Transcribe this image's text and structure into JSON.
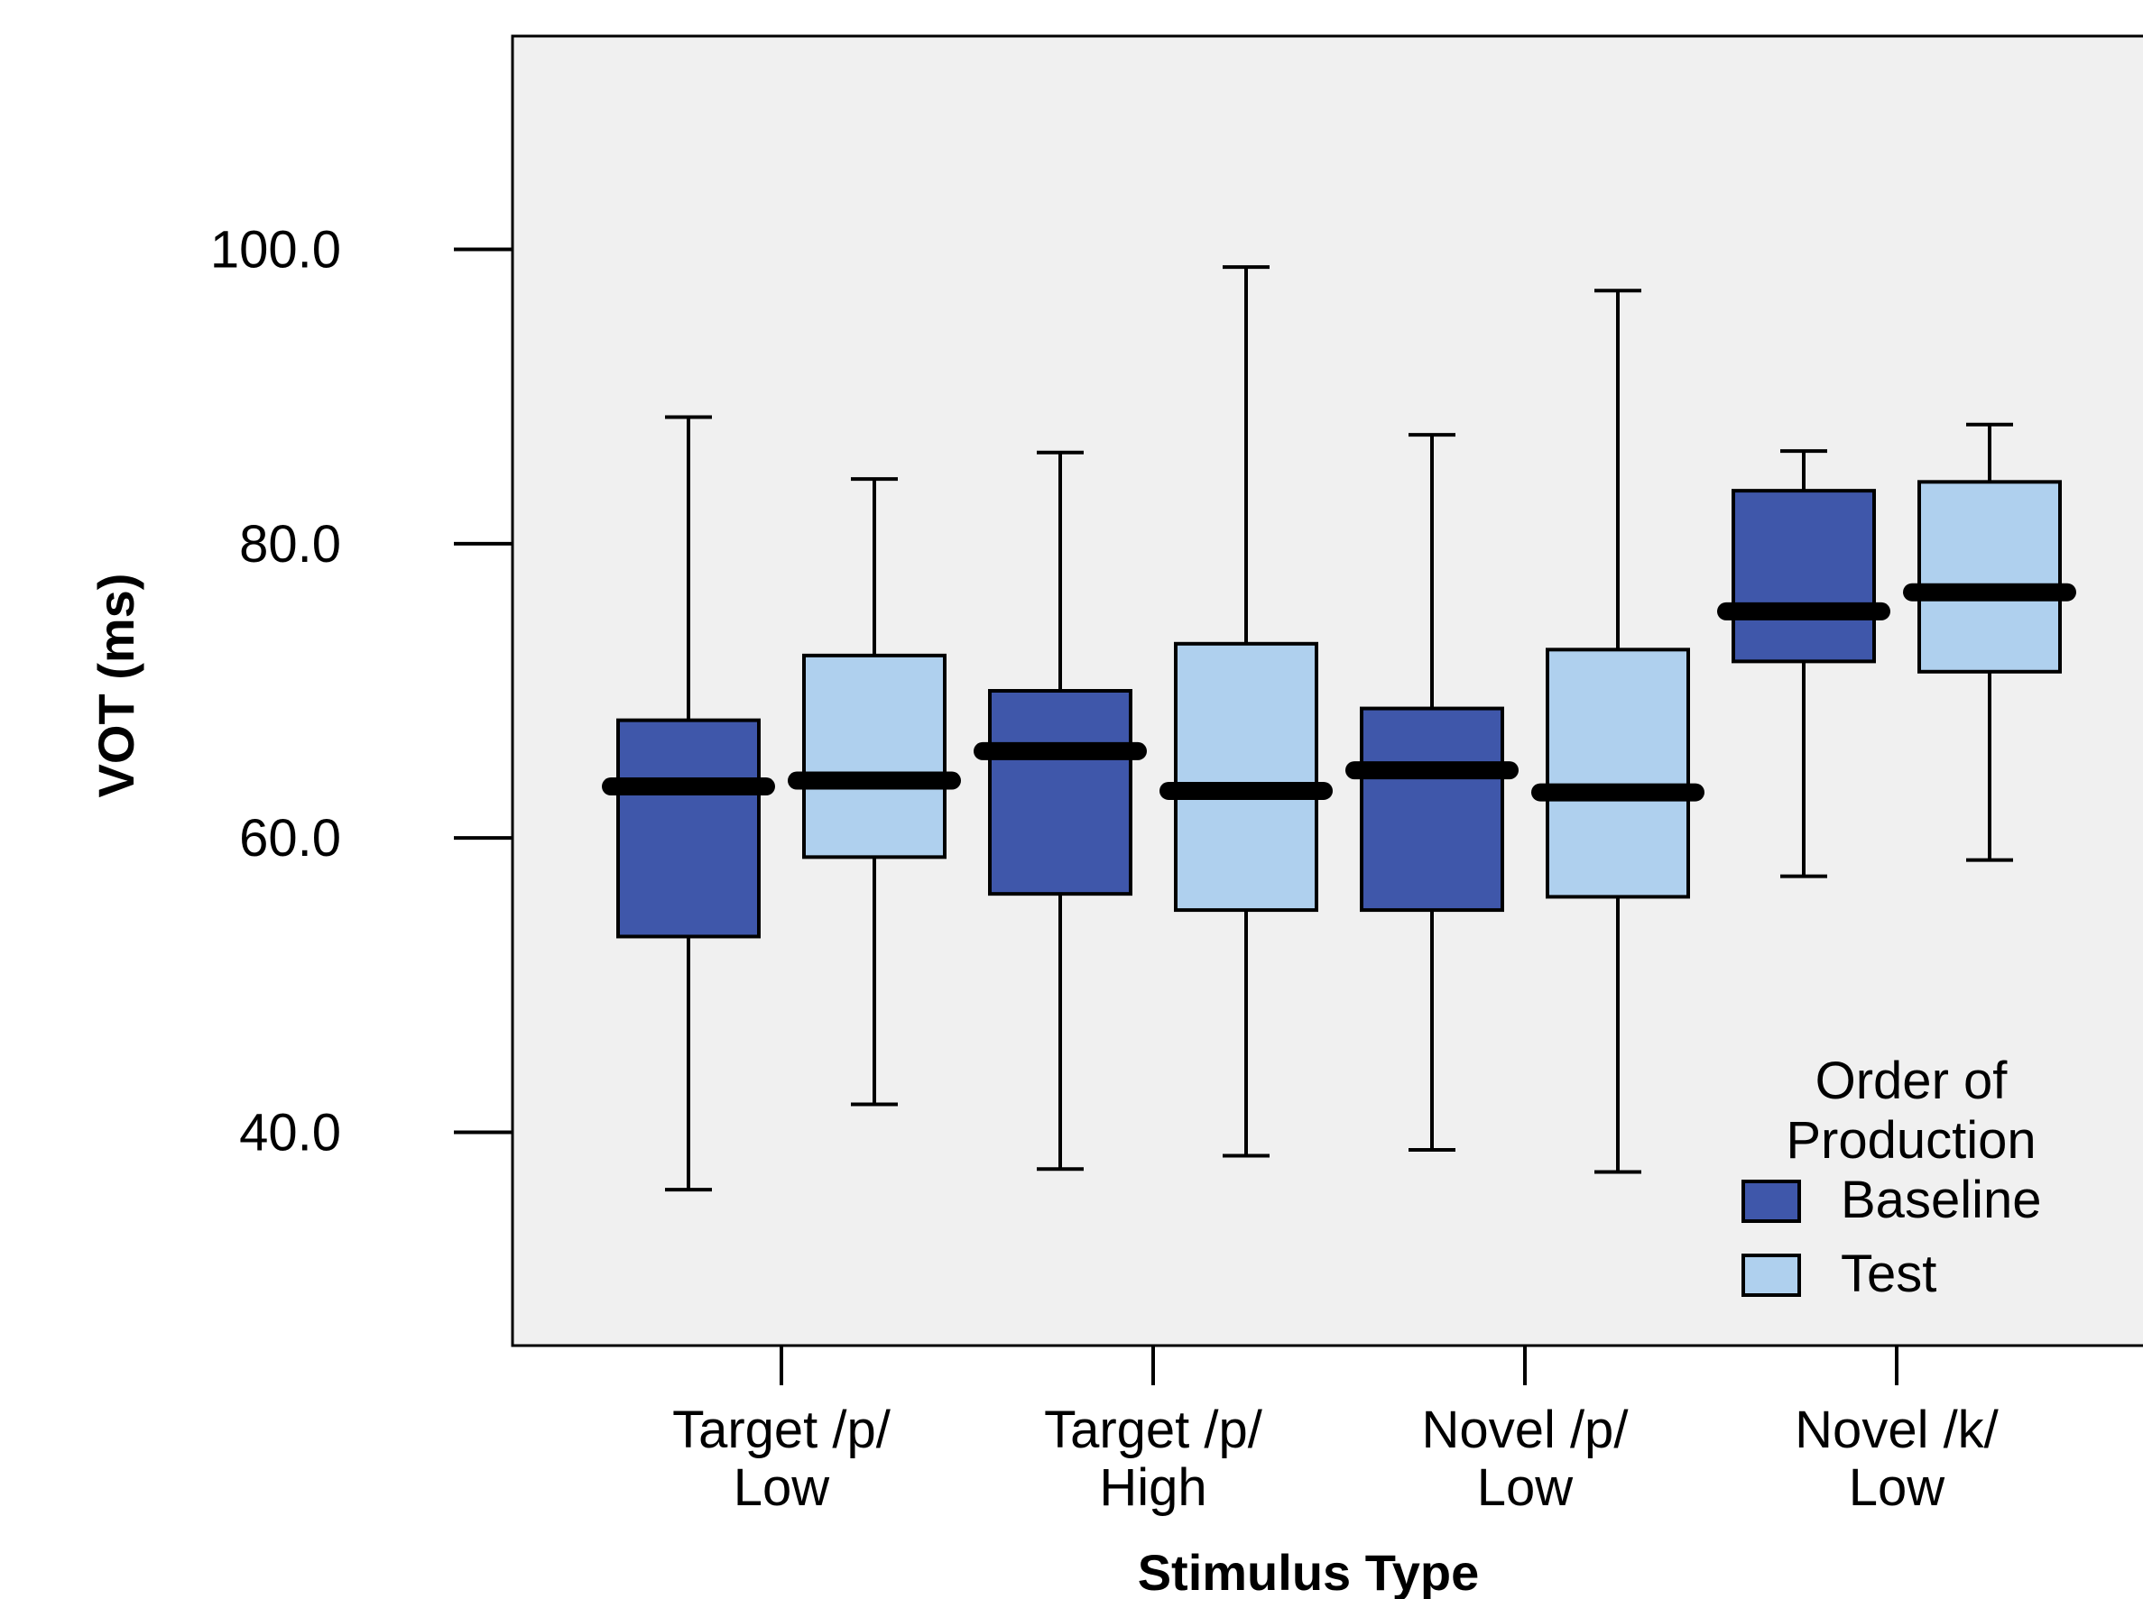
{
  "chart_data": {
    "type": "boxplot",
    "xlabel": "Stimulus Type",
    "ylabel": "VOT (ms)",
    "ylim": [
      25.5,
      114.5
    ],
    "yticks": [
      "40.0",
      "60.0",
      "80.0",
      "100.0"
    ],
    "ytick_values": [
      40,
      60,
      80,
      100
    ],
    "grid": false,
    "legend_position": "bottom-right",
    "legend_title": [
      "Order of",
      "Production"
    ],
    "categories": [
      [
        "Target /p/",
        "Low"
      ],
      [
        "Target /p/",
        "High"
      ],
      [
        "Novel /p/",
        "Low"
      ],
      [
        "Novel /k/",
        "Low"
      ]
    ],
    "series": [
      {
        "name": "Baseline",
        "color": "#3F57AA",
        "boxes": [
          {
            "min": 36.1,
            "q1": 53.3,
            "median": 63.5,
            "q3": 68.0,
            "max": 88.6
          },
          {
            "min": 37.5,
            "q1": 56.2,
            "median": 65.9,
            "q3": 70.0,
            "max": 86.2
          },
          {
            "min": 38.8,
            "q1": 55.1,
            "median": 64.6,
            "q3": 68.8,
            "max": 87.4
          },
          {
            "min": 57.4,
            "q1": 72.0,
            "median": 75.4,
            "q3": 83.6,
            "max": 86.3
          }
        ]
      },
      {
        "name": "Test",
        "color": "#AFD0EE",
        "boxes": [
          {
            "min": 41.9,
            "q1": 58.7,
            "median": 63.9,
            "q3": 72.4,
            "max": 84.4
          },
          {
            "min": 38.4,
            "q1": 55.1,
            "median": 63.2,
            "q3": 73.2,
            "max": 98.8
          },
          {
            "min": 37.3,
            "q1": 56.0,
            "median": 63.1,
            "q3": 72.8,
            "max": 97.2
          },
          {
            "min": 58.5,
            "q1": 71.3,
            "median": 76.7,
            "q3": 84.2,
            "max": 88.1
          }
        ]
      }
    ]
  }
}
